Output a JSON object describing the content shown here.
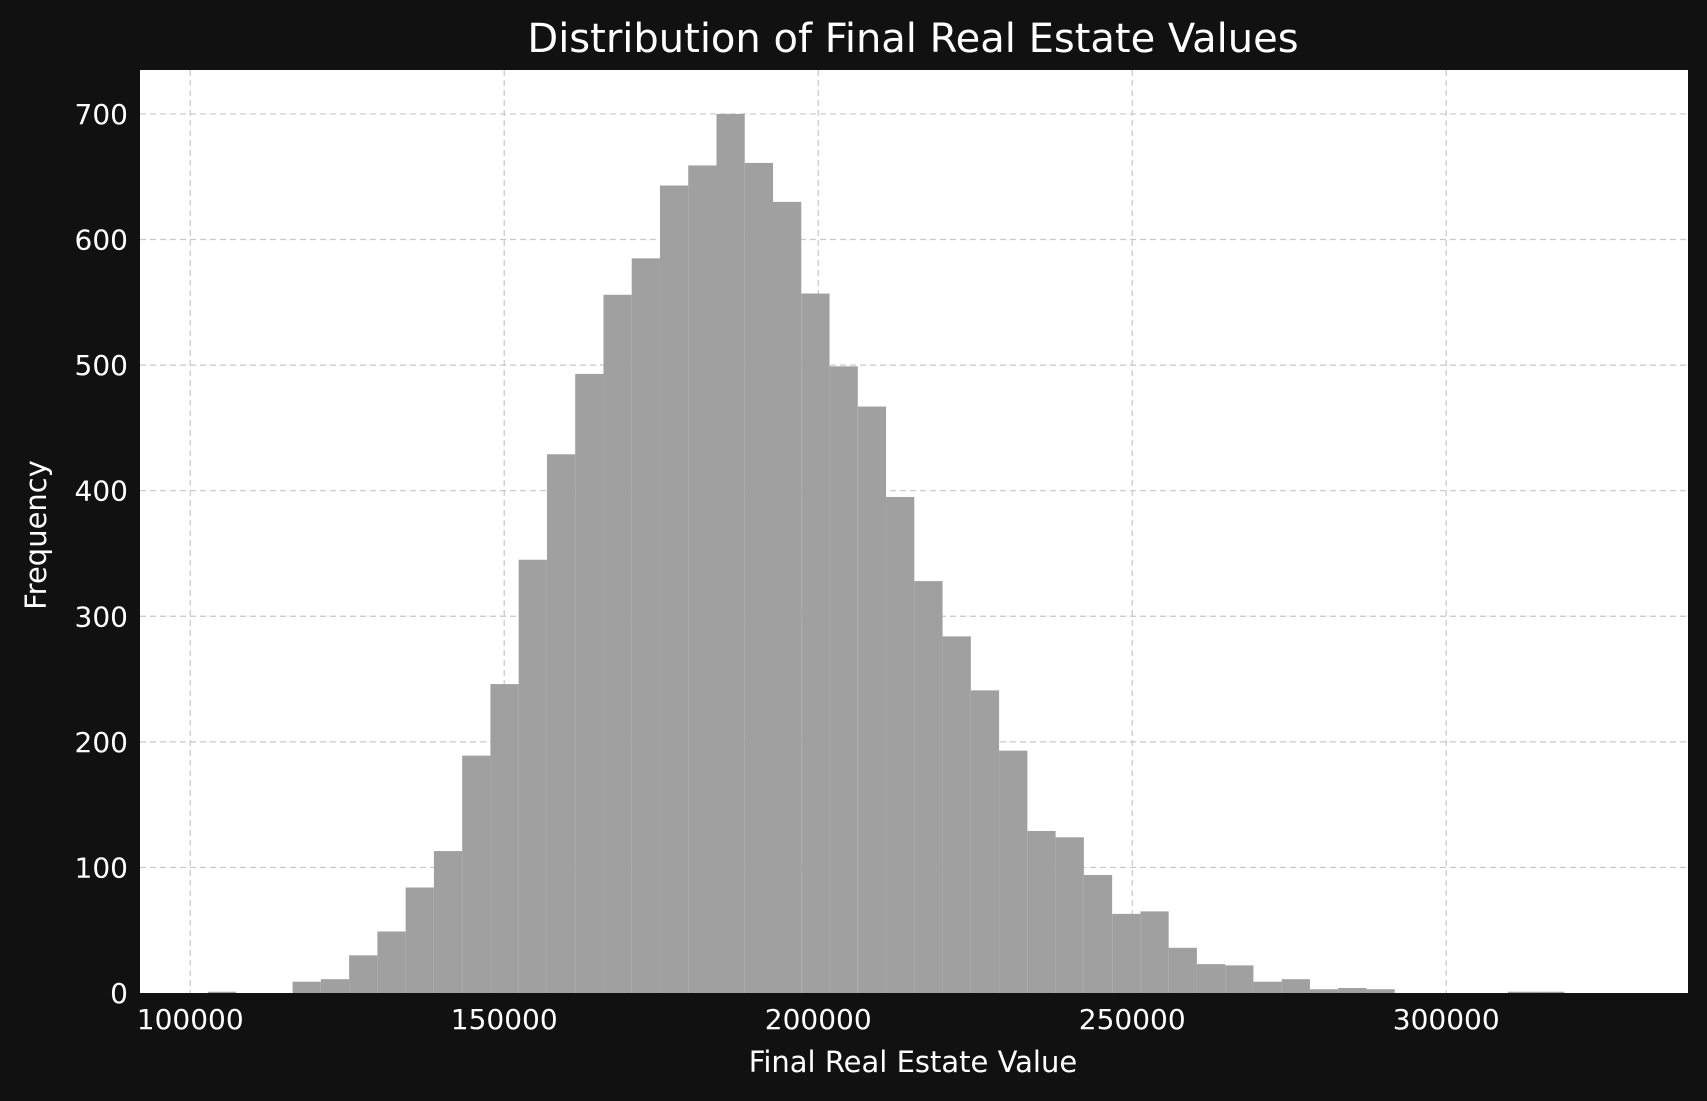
{
  "chart_data": {
    "type": "bar",
    "subtype": "histogram",
    "title": "Distribution of Final Real Estate Values",
    "xlabel": "Final Real Estate Value",
    "ylabel": "Frequency",
    "xlim": [
      92000,
      338500
    ],
    "ylim": [
      0,
      735
    ],
    "xticks": [
      100000,
      150000,
      200000,
      250000,
      300000
    ],
    "yticks": [
      0,
      100,
      200,
      300,
      400,
      500,
      600,
      700
    ],
    "grid": true,
    "bar_color": "#a0a0a0",
    "background": "#111111",
    "plot_background": "#ffffff",
    "bin_edges": [
      102800,
      107300,
      111800,
      116300,
      120800,
      125300,
      129800,
      134300,
      138800,
      143300,
      147800,
      152300,
      156800,
      161300,
      165800,
      170300,
      174800,
      179300,
      183800,
      188300,
      192800,
      197300,
      201800,
      206300,
      210800,
      215300,
      219800,
      224300,
      228800,
      233300,
      237800,
      242300,
      246800,
      251300,
      255800,
      260300,
      264800,
      269300,
      273800,
      278300,
      282800,
      287300,
      291800,
      296300,
      300800,
      305300,
      309800,
      314300,
      318800
    ],
    "counts": [
      1,
      0,
      0,
      9,
      11,
      30,
      49,
      84,
      113,
      189,
      246,
      345,
      429,
      493,
      556,
      585,
      643,
      659,
      700,
      661,
      630,
      557,
      499,
      467,
      395,
      328,
      284,
      241,
      193,
      129,
      124,
      94,
      63,
      65,
      36,
      23,
      22,
      9,
      11,
      3,
      4,
      3,
      0,
      0,
      0,
      0,
      1,
      1
    ]
  }
}
